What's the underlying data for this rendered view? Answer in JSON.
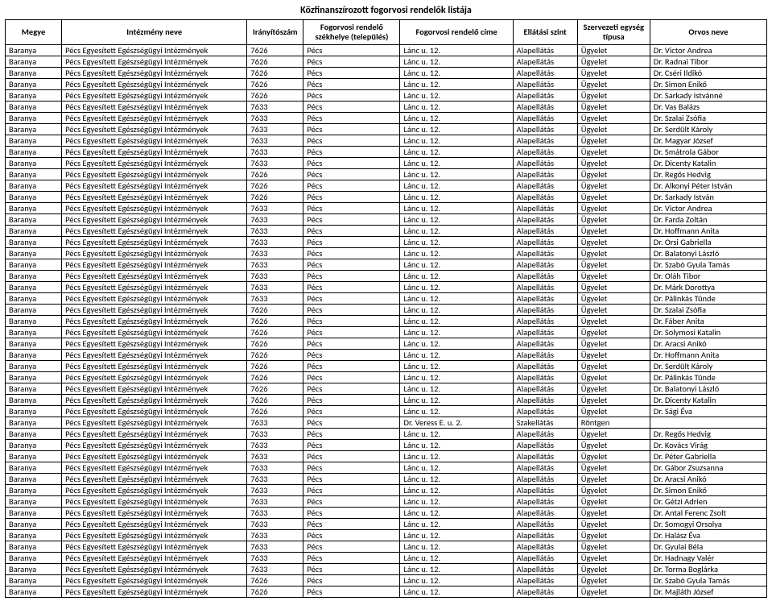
{
  "title": "Közfinanszírozott fogorvosi rendelők listája",
  "columns": [
    "Megye",
    "Intézmény neve",
    "Irányítószám",
    "Fogorvosi rendelő székhelye (település)",
    "Fogorvosi rendelő címe",
    "Ellátási szint",
    "Szervezeti egység típusa",
    "Orvos neve"
  ],
  "rows": [
    [
      "Baranya",
      "Pécs Egyesített Egészségügyi Intézmények",
      "7626",
      "Pécs",
      "Lánc u. 12.",
      "Alapellátás",
      "Ügyelet",
      "Dr. Victor Andrea"
    ],
    [
      "Baranya",
      "Pécs Egyesített Egészségügyi Intézmények",
      "7626",
      "Pécs",
      "Lánc u. 12.",
      "Alapellátás",
      "Ügyelet",
      "Dr. Radnai Tibor"
    ],
    [
      "Baranya",
      "Pécs Egyesített Egészségügyi Intézmények",
      "7626",
      "Pécs",
      "Lánc u. 12.",
      "Alapellátás",
      "Ügyelet",
      "Dr. Cséri Ildikó"
    ],
    [
      "Baranya",
      "Pécs Egyesített Egészségügyi Intézmények",
      "7626",
      "Pécs",
      "Lánc u. 12.",
      "Alapellátás",
      "Ügyelet",
      "Dr. Simon Enikő"
    ],
    [
      "Baranya",
      "Pécs Egyesített Egészségügyi Intézmények",
      "7626",
      "Pécs",
      "Lánc u. 12.",
      "Alapellátás",
      "Ügyelet",
      "Dr. Sarkady Istvánné"
    ],
    [
      "Baranya",
      "Pécs Egyesített Egészségügyi Intézmények",
      "7633",
      "Pécs",
      "Lánc u. 12.",
      "Alapellátás",
      "Ügyelet",
      "Dr. Vas Balázs"
    ],
    [
      "Baranya",
      "Pécs Egyesített Egészségügyi Intézmények",
      "7633",
      "Pécs",
      "Lánc u. 12.",
      "Alapellátás",
      "Ügyelet",
      "Dr. Szalai Zsófia"
    ],
    [
      "Baranya",
      "Pécs Egyesített Egészségügyi Intézmények",
      "7633",
      "Pécs",
      "Lánc u. 12.",
      "Alapellátás",
      "Ügyelet",
      "Dr. Serdült Károly"
    ],
    [
      "Baranya",
      "Pécs Egyesített Egészségügyi Intézmények",
      "7633",
      "Pécs",
      "Lánc u. 12.",
      "Alapellátás",
      "Ügyelet",
      "Dr. Magyar József"
    ],
    [
      "Baranya",
      "Pécs Egyesített Egészségügyi Intézmények",
      "7633",
      "Pécs",
      "Lánc u. 12.",
      "Alapellátás",
      "Ügyelet",
      "Dr. Smátrola Gábor"
    ],
    [
      "Baranya",
      "Pécs Egyesített Egészségügyi Intézmények",
      "7633",
      "Pécs",
      "Lánc u. 12.",
      "Alapellátás",
      "Ügyelet",
      "Dr. Dicenty Katalin"
    ],
    [
      "Baranya",
      "Pécs Egyesített Egészségügyi Intézmények",
      "7626",
      "Pécs",
      "Lánc u. 12.",
      "Alapellátás",
      "Ügyelet",
      "Dr. Regős Hedvig"
    ],
    [
      "Baranya",
      "Pécs Egyesített Egészségügyi Intézmények",
      "7626",
      "Pécs",
      "Lánc u. 12.",
      "Alapellátás",
      "Ügyelet",
      "Dr. Alkonyi Péter István"
    ],
    [
      "Baranya",
      "Pécs Egyesített Egészségügyi Intézmények",
      "7626",
      "Pécs",
      "Lánc u. 12.",
      "Alapellátás",
      "Ügyelet",
      "Dr. Sarkady István"
    ],
    [
      "Baranya",
      "Pécs Egyesített Egészségügyi Intézmények",
      "7633",
      "Pécs",
      "Lánc u. 12.",
      "Alapellátás",
      "Ügyelet",
      "Dr. Victor Andrea"
    ],
    [
      "Baranya",
      "Pécs Egyesített Egészségügyi Intézmények",
      "7633",
      "Pécs",
      "Lánc u. 12.",
      "Alapellátás",
      "Ügyelet",
      "Dr. Farda Zoltán"
    ],
    [
      "Baranya",
      "Pécs Egyesített Egészségügyi Intézmények",
      "7633",
      "Pécs",
      "Lánc u. 12.",
      "Alapellátás",
      "Ügyelet",
      "Dr. Hoffmann Anita"
    ],
    [
      "Baranya",
      "Pécs Egyesített Egészségügyi Intézmények",
      "7633",
      "Pécs",
      "Lánc u. 12.",
      "Alapellátás",
      "Ügyelet",
      "Dr. Orsi Gabriella"
    ],
    [
      "Baranya",
      "Pécs Egyesített Egészségügyi Intézmények",
      "7633",
      "Pécs",
      "Lánc u. 12.",
      "Alapellátás",
      "Ügyelet",
      "Dr. Balatonyi László"
    ],
    [
      "Baranya",
      "Pécs Egyesített Egészségügyi Intézmények",
      "7633",
      "Pécs",
      "Lánc u. 12.",
      "Alapellátás",
      "Ügyelet",
      "Dr. Szabó Gyula Tamás"
    ],
    [
      "Baranya",
      "Pécs Egyesített Egészségügyi Intézmények",
      "7633",
      "Pécs",
      "Lánc u. 12.",
      "Alapellátás",
      "Ügyelet",
      "Dr. Oláh Tibor"
    ],
    [
      "Baranya",
      "Pécs Egyesített Egészségügyi Intézmények",
      "7633",
      "Pécs",
      "Lánc u. 12.",
      "Alapellátás",
      "Ügyelet",
      "Dr. Márk Dorottya"
    ],
    [
      "Baranya",
      "Pécs Egyesített Egészségügyi Intézmények",
      "7633",
      "Pécs",
      "Lánc u. 12.",
      "Alapellátás",
      "Ügyelet",
      "Dr. Pálinkás Tünde"
    ],
    [
      "Baranya",
      "Pécs Egyesített Egészségügyi Intézmények",
      "7626",
      "Pécs",
      "Lánc u. 12.",
      "Alapellátás",
      "Ügyelet",
      "Dr. Szalai Zsófia"
    ],
    [
      "Baranya",
      "Pécs Egyesített Egészségügyi Intézmények",
      "7626",
      "Pécs",
      "Lánc u. 12.",
      "Alapellátás",
      "Ügyelet",
      "Dr. Fáber Anita"
    ],
    [
      "Baranya",
      "Pécs Egyesített Egészségügyi Intézmények",
      "7626",
      "Pécs",
      "Lánc u. 12.",
      "Alapellátás",
      "Ügyelet",
      "Dr. Solymosi Katalin"
    ],
    [
      "Baranya",
      "Pécs Egyesített Egészségügyi Intézmények",
      "7626",
      "Pécs",
      "Lánc u. 12.",
      "Alapellátás",
      "Ügyelet",
      "Dr. Aracsi Anikó"
    ],
    [
      "Baranya",
      "Pécs Egyesített Egészségügyi Intézmények",
      "7626",
      "Pécs",
      "Lánc u. 12.",
      "Alapellátás",
      "Ügyelet",
      "Dr. Hoffmann Anita"
    ],
    [
      "Baranya",
      "Pécs Egyesített Egészségügyi Intézmények",
      "7626",
      "Pécs",
      "Lánc u. 12.",
      "Alapellátás",
      "Ügyelet",
      "Dr. Serdült Károly"
    ],
    [
      "Baranya",
      "Pécs Egyesített Egészségügyi Intézmények",
      "7626",
      "Pécs",
      "Lánc u. 12.",
      "Alapellátás",
      "Ügyelet",
      "Dr. Pálinkás Tünde"
    ],
    [
      "Baranya",
      "Pécs Egyesített Egészségügyi Intézmények",
      "7626",
      "Pécs",
      "Lánc u. 12.",
      "Alapellátás",
      "Ügyelet",
      "Dr. Balatonyi László"
    ],
    [
      "Baranya",
      "Pécs Egyesített Egészségügyi Intézmények",
      "7626",
      "Pécs",
      "Lánc u. 12.",
      "Alapellátás",
      "Ügyelet",
      "Dr. Dicenty Katalin"
    ],
    [
      "Baranya",
      "Pécs Egyesített Egészségügyi Intézmények",
      "7626",
      "Pécs",
      "Lánc u. 12.",
      "Alapellátás",
      "Ügyelet",
      "Dr. Sági Éva"
    ],
    [
      "Baranya",
      "Pécs Egyesített Egészségügyi Intézmények",
      "7633",
      "Pécs",
      "Dr. Veress E. u. 2.",
      "Szakellátás",
      "Röntgen",
      ""
    ],
    [
      "Baranya",
      "Pécs Egyesített Egészségügyi Intézmények",
      "7633",
      "Pécs",
      "Lánc u. 12.",
      "Alapellátás",
      "Ügyelet",
      "Dr. Regős Hedvig"
    ],
    [
      "Baranya",
      "Pécs Egyesített Egészségügyi Intézmények",
      "7633",
      "Pécs",
      "Lánc u. 12.",
      "Alapellátás",
      "Ügyelet",
      "Dr. Kovács Virág"
    ],
    [
      "Baranya",
      "Pécs Egyesített Egészségügyi Intézmények",
      "7633",
      "Pécs",
      "Lánc u. 12.",
      "Alapellátás",
      "Ügyelet",
      "Dr. Péter Gabriella"
    ],
    [
      "Baranya",
      "Pécs Egyesített Egészségügyi Intézmények",
      "7633",
      "Pécs",
      "Lánc u. 12.",
      "Alapellátás",
      "Ügyelet",
      "Dr. Gábor Zsuzsanna"
    ],
    [
      "Baranya",
      "Pécs Egyesített Egészségügyi Intézmények",
      "7633",
      "Pécs",
      "Lánc u. 12.",
      "Alapellátás",
      "Ügyelet",
      "Dr. Aracsi Anikó"
    ],
    [
      "Baranya",
      "Pécs Egyesített Egészségügyi Intézmények",
      "7633",
      "Pécs",
      "Lánc u. 12.",
      "Alapellátás",
      "Ügyelet",
      "Dr. Simon Enikő"
    ],
    [
      "Baranya",
      "Pécs Egyesített Egészségügyi Intézmények",
      "7633",
      "Pécs",
      "Lánc u. 12.",
      "Alapellátás",
      "Ügyelet",
      "Dr. Gétzi Adrien"
    ],
    [
      "Baranya",
      "Pécs Egyesített Egészségügyi Intézmények",
      "7633",
      "Pécs",
      "Lánc u. 12.",
      "Alapellátás",
      "Ügyelet",
      "Dr. Antal Ferenc Zsolt"
    ],
    [
      "Baranya",
      "Pécs Egyesített Egészségügyi Intézmények",
      "7633",
      "Pécs",
      "Lánc u. 12.",
      "Alapellátás",
      "Ügyelet",
      "Dr. Somogyi Orsolya"
    ],
    [
      "Baranya",
      "Pécs Egyesített Egészségügyi Intézmények",
      "7633",
      "Pécs",
      "Lánc u. 12.",
      "Alapellátás",
      "Ügyelet",
      "Dr. Halász Éva"
    ],
    [
      "Baranya",
      "Pécs Egyesített Egészségügyi Intézmények",
      "7633",
      "Pécs",
      "Lánc u. 12.",
      "Alapellátás",
      "Ügyelet",
      "Dr. Gyulai Béla"
    ],
    [
      "Baranya",
      "Pécs Egyesített Egészségügyi Intézmények",
      "7633",
      "Pécs",
      "Lánc u. 12.",
      "Alapellátás",
      "Ügyelet",
      "Dr. Hadnagy Valér"
    ],
    [
      "Baranya",
      "Pécs Egyesített Egészségügyi Intézmények",
      "7633",
      "Pécs",
      "Lánc u. 12.",
      "Alapellátás",
      "Ügyelet",
      "Dr. Torma Boglárka"
    ],
    [
      "Baranya",
      "Pécs Egyesített Egészségügyi Intézmények",
      "7626",
      "Pécs",
      "Lánc u. 12.",
      "Alapellátás",
      "Ügyelet",
      "Dr. Szabó Gyula Tamás"
    ],
    [
      "Baranya",
      "Pécs Egyesített Egészségügyi Intézmények",
      "7626",
      "Pécs",
      "Lánc u. 12.",
      "Alapellátás",
      "Ügyelet",
      "Dr. Majláth József"
    ]
  ],
  "style": {
    "background_color": "#ffffff",
    "border_color": "#000000",
    "text_color": "#000000",
    "title_fontsize_pt": 9,
    "body_fontsize_pt": 8,
    "font_family": "Calibri"
  }
}
